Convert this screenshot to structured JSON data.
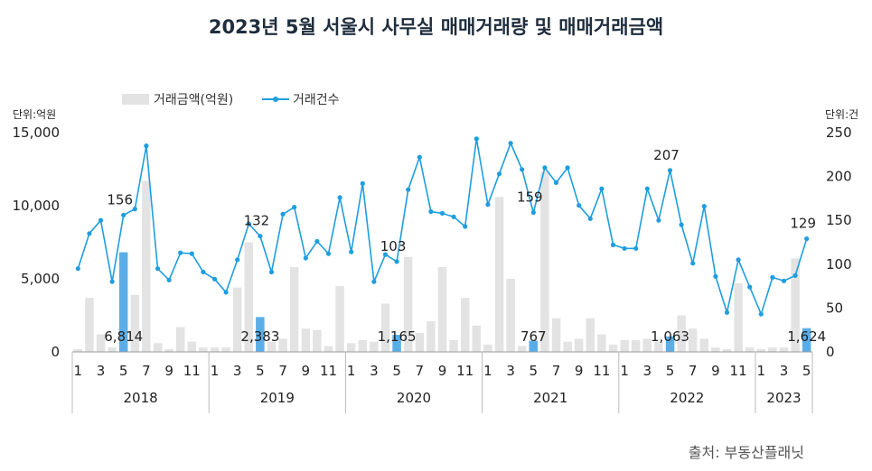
{
  "title": "2023년 5월 서울시 사무실 매매거래량 및 매매거래금액",
  "source": "출처: 부동산플래닛",
  "chart_data": {
    "type": "bar+line",
    "title": "2023년 5월 서울시 사무실 매매거래량 및 매매거래금액",
    "y_left_unit": "단위:억원",
    "y_right_unit": "단위:건",
    "ylim_left": [
      0,
      15000
    ],
    "ylim_right": [
      0,
      250
    ],
    "yticks_left": [
      "0",
      "5,000",
      "10,000",
      "15,000"
    ],
    "yticks_right": [
      "0",
      "50",
      "100",
      "150",
      "200",
      "250"
    ],
    "legend": {
      "position": "top-left",
      "bar_name": "거래금액(억원)",
      "line_name": "거래건수"
    },
    "years": [
      "2018",
      "2019",
      "2020",
      "2021",
      "2022",
      "2023"
    ],
    "x_tick_labels": [
      "1",
      "",
      "3",
      "",
      "5",
      "",
      "7",
      "",
      "9",
      "",
      "11",
      "",
      "1",
      "",
      "3",
      "",
      "5",
      "",
      "7",
      "",
      "9",
      "",
      "11",
      "",
      "1",
      "",
      "3",
      "",
      "5",
      "",
      "7",
      "",
      "9",
      "",
      "11",
      "",
      "1",
      "",
      "3",
      "",
      "5",
      "",
      "7",
      "",
      "9",
      "",
      "11",
      "",
      "1",
      "",
      "3",
      "",
      "5",
      "",
      "7",
      "",
      "9",
      "",
      "11",
      "",
      "1",
      "",
      "3",
      "",
      "5"
    ],
    "highlight_months": [
      4,
      16,
      28,
      40,
      52,
      64
    ],
    "series": [
      {
        "name": "거래금액(억원)",
        "kind": "bar",
        "axis": "left",
        "values": [
          200,
          3700,
          1200,
          300,
          6814,
          3900,
          11700,
          600,
          200,
          1700,
          700,
          300,
          300,
          300,
          4400,
          7500,
          2383,
          700,
          900,
          5800,
          1600,
          1500,
          400,
          4500,
          600,
          800,
          700,
          3300,
          1165,
          6500,
          1300,
          2100,
          5800,
          800,
          3700,
          1800,
          500,
          10600,
          5000,
          400,
          767,
          12300,
          2300,
          700,
          900,
          2300,
          1200,
          500,
          800,
          800,
          900,
          700,
          1063,
          2500,
          1600,
          900,
          300,
          200,
          4700,
          300,
          200,
          300,
          300,
          6400,
          1624
        ]
      },
      {
        "name": "거래건수",
        "kind": "line",
        "axis": "right",
        "values": [
          95,
          135,
          150,
          80,
          156,
          163,
          235,
          95,
          82,
          113,
          112,
          91,
          83,
          68,
          105,
          146,
          132,
          91,
          157,
          165,
          107,
          126,
          112,
          176,
          114,
          192,
          80,
          111,
          103,
          185,
          222,
          160,
          158,
          154,
          143,
          243,
          168,
          203,
          238,
          208,
          159,
          210,
          193,
          210,
          167,
          152,
          186,
          122,
          118,
          118,
          186,
          150,
          207,
          145,
          101,
          166,
          86,
          45,
          105,
          74,
          43,
          85,
          81,
          87,
          129
        ]
      }
    ],
    "bar_labels": [
      "6,814",
      "2,383",
      "1,165",
      "767",
      "1,063",
      "1,624"
    ],
    "line_labels": [
      "156",
      "132",
      "103",
      "159",
      "207",
      "129"
    ],
    "colors": {
      "bar": "#e3e3e3",
      "bar_highlight": "#5aaee8",
      "line": "#1e9ee0",
      "title": "#1f2d3d"
    }
  }
}
